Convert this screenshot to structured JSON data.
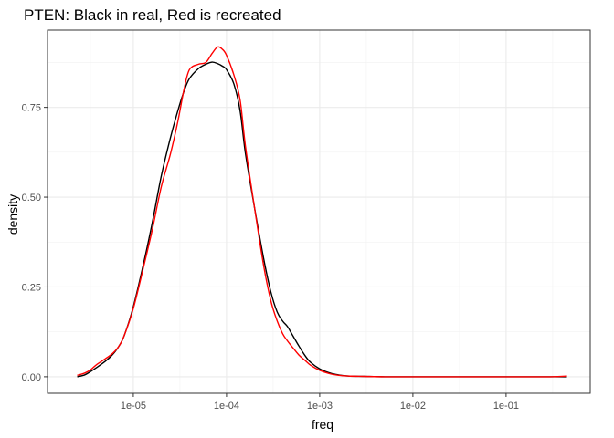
{
  "chart_data": {
    "type": "line",
    "title": "PTEN: Black in real, Red is recreated",
    "xlabel": "freq",
    "ylabel": "density",
    "x_scale": "log10",
    "xlim": [
      1.2e-06,
      0.8
    ],
    "ylim": [
      -0.046,
      0.965
    ],
    "x_ticks": [
      {
        "value": 1e-05,
        "label": "1e-05"
      },
      {
        "value": 0.0001,
        "label": "1e-04"
      },
      {
        "value": 0.001,
        "label": "1e-03"
      },
      {
        "value": 0.01,
        "label": "1e-02"
      },
      {
        "value": 0.1,
        "label": "1e-01"
      }
    ],
    "y_ticks": [
      {
        "value": 0.0,
        "label": "0.00"
      },
      {
        "value": 0.25,
        "label": "0.25"
      },
      {
        "value": 0.5,
        "label": "0.50"
      },
      {
        "value": 0.75,
        "label": "0.75"
      }
    ],
    "grid": true,
    "theme": "bw",
    "series": [
      {
        "color": "#000000",
        "x": [
          2.5e-06,
          3e-06,
          3.5e-06,
          4e-06,
          5e-06,
          6e-06,
          7e-06,
          8e-06,
          1e-05,
          1.3e-05,
          1.6e-05,
          2e-05,
          2.5e-05,
          3e-05,
          3.5e-05,
          4e-05,
          5e-05,
          6e-05,
          7e-05,
          8e-05,
          9e-05,
          0.0001,
          0.00012,
          0.00014,
          0.00016,
          0.0002,
          0.00025,
          0.0003,
          0.00035,
          0.0004,
          0.00045,
          0.0005,
          0.0006,
          0.0007,
          0.0008,
          0.001,
          0.0013,
          0.0016,
          0.002,
          0.003,
          0.005,
          0.01,
          0.03,
          0.1,
          0.3,
          0.45
        ],
        "y": [
          0.0,
          0.005,
          0.015,
          0.025,
          0.043,
          0.062,
          0.085,
          0.115,
          0.195,
          0.32,
          0.43,
          0.56,
          0.665,
          0.74,
          0.795,
          0.83,
          0.858,
          0.87,
          0.876,
          0.872,
          0.865,
          0.855,
          0.815,
          0.74,
          0.62,
          0.47,
          0.33,
          0.235,
          0.18,
          0.155,
          0.14,
          0.12,
          0.085,
          0.058,
          0.04,
          0.022,
          0.01,
          0.005,
          0.002,
          0.001,
          0.0,
          0.0,
          0.0,
          0.0,
          0.0,
          0.0
        ]
      },
      {
        "color": "#ff0000",
        "x": [
          2.5e-06,
          3e-06,
          3.5e-06,
          4e-06,
          5e-06,
          6e-06,
          7e-06,
          8e-06,
          1e-05,
          1.3e-05,
          1.6e-05,
          2e-05,
          2.5e-05,
          3e-05,
          3.5e-05,
          4e-05,
          5e-05,
          6e-05,
          7e-05,
          8e-05,
          9e-05,
          0.0001,
          0.00012,
          0.00014,
          0.00016,
          0.0002,
          0.00025,
          0.0003,
          0.00035,
          0.0004,
          0.00045,
          0.0005,
          0.0006,
          0.0007,
          0.0008,
          0.001,
          0.0013,
          0.0016,
          0.002,
          0.003,
          0.005,
          0.01,
          0.03,
          0.1,
          0.3,
          0.45
        ],
        "y": [
          0.004,
          0.01,
          0.02,
          0.033,
          0.05,
          0.065,
          0.085,
          0.115,
          0.19,
          0.31,
          0.41,
          0.53,
          0.62,
          0.71,
          0.8,
          0.855,
          0.87,
          0.875,
          0.9,
          0.918,
          0.912,
          0.895,
          0.84,
          0.77,
          0.64,
          0.47,
          0.31,
          0.21,
          0.155,
          0.12,
          0.1,
          0.085,
          0.06,
          0.045,
          0.032,
          0.018,
          0.008,
          0.004,
          0.002,
          0.001,
          0.0,
          0.0,
          0.0,
          0.0,
          0.0,
          0.002
        ]
      }
    ]
  }
}
